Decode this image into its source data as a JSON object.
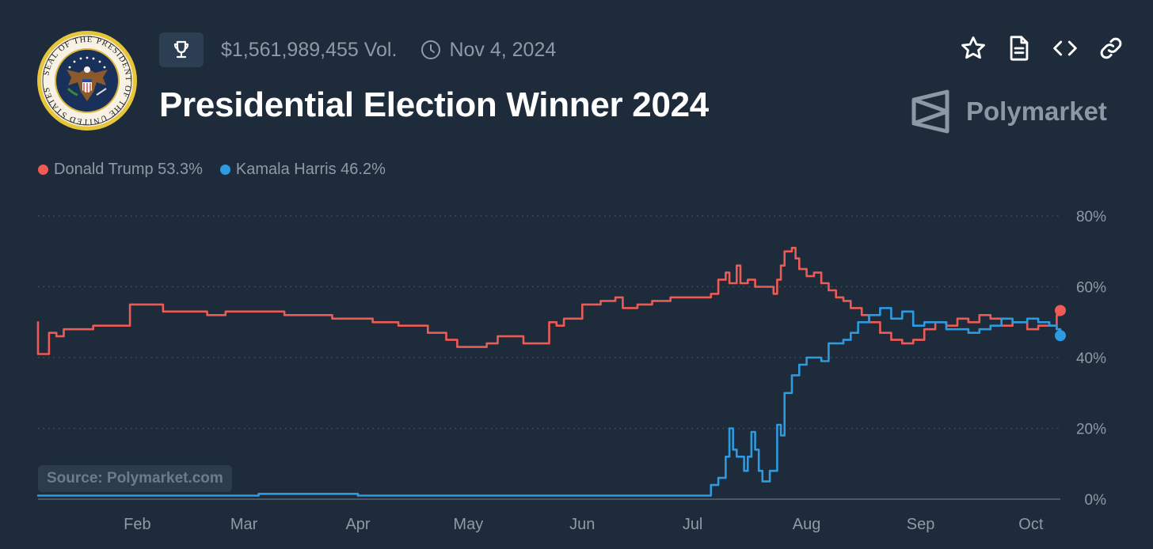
{
  "header": {
    "volume": "$1,561,989,455 Vol.",
    "date": "Nov 4, 2024",
    "title": "Presidential Election Winner 2024",
    "seal_text": "SEAL OF THE PRESIDENT OF THE UNITED STATES",
    "brand": "Polymarket"
  },
  "icons": {
    "trophy": "trophy-icon",
    "clock": "clock-icon",
    "actions": [
      "star-icon",
      "document-icon",
      "code-icon",
      "link-icon"
    ]
  },
  "legend": [
    {
      "label": "Donald Trump 53.3%",
      "color": "#ec5b55"
    },
    {
      "label": "Kamala Harris 46.2%",
      "color": "#2e9ae0"
    }
  ],
  "source": "Source: Polymarket.com",
  "colors": {
    "background": "#1d2b3a",
    "trump": "#ec5b55",
    "harris": "#2e9ae0",
    "muted_text": "#8e9aa7",
    "gridline": "#46566a"
  },
  "chart_data": {
    "type": "line",
    "x_type": "date",
    "xlim": [
      "2024-01-05",
      "2024-10-09"
    ],
    "ylim": [
      0,
      80
    ],
    "y_ticks": [
      0,
      20,
      40,
      60,
      80
    ],
    "y_tick_labels": [
      "0%",
      "20%",
      "40%",
      "60%",
      "80%"
    ],
    "x_ticks": [
      "2024-02-01",
      "2024-03-01",
      "2024-04-01",
      "2024-05-01",
      "2024-06-01",
      "2024-07-01",
      "2024-08-01",
      "2024-09-01",
      "2024-10-01"
    ],
    "x_tick_labels": [
      "Feb",
      "Mar",
      "Apr",
      "May",
      "Jun",
      "Jul",
      "Aug",
      "Sep",
      "Oct"
    ],
    "grid": "horizontal dotted",
    "legend_position": "top-left",
    "series": [
      {
        "name": "Donald Trump",
        "color": "#ec5b55",
        "points": [
          [
            "2024-01-05",
            50
          ],
          [
            "2024-01-05",
            41
          ],
          [
            "2024-01-07",
            41
          ],
          [
            "2024-01-08",
            47
          ],
          [
            "2024-01-10",
            46
          ],
          [
            "2024-01-12",
            48
          ],
          [
            "2024-01-15",
            48
          ],
          [
            "2024-01-20",
            49
          ],
          [
            "2024-01-28",
            49
          ],
          [
            "2024-01-30",
            55
          ],
          [
            "2024-02-06",
            55
          ],
          [
            "2024-02-08",
            53
          ],
          [
            "2024-02-15",
            53
          ],
          [
            "2024-02-20",
            52
          ],
          [
            "2024-02-25",
            53
          ],
          [
            "2024-03-01",
            53
          ],
          [
            "2024-03-05",
            53
          ],
          [
            "2024-03-10",
            53
          ],
          [
            "2024-03-12",
            52
          ],
          [
            "2024-03-22",
            52
          ],
          [
            "2024-03-25",
            51
          ],
          [
            "2024-04-01",
            51
          ],
          [
            "2024-04-05",
            50
          ],
          [
            "2024-04-12",
            49
          ],
          [
            "2024-04-20",
            47
          ],
          [
            "2024-04-25",
            45
          ],
          [
            "2024-04-28",
            43
          ],
          [
            "2024-05-01",
            43
          ],
          [
            "2024-05-06",
            44
          ],
          [
            "2024-05-09",
            46
          ],
          [
            "2024-05-13",
            46
          ],
          [
            "2024-05-16",
            44
          ],
          [
            "2024-05-22",
            44
          ],
          [
            "2024-05-23",
            50
          ],
          [
            "2024-05-25",
            49
          ],
          [
            "2024-05-27",
            51
          ],
          [
            "2024-06-01",
            55
          ],
          [
            "2024-06-06",
            56
          ],
          [
            "2024-06-10",
            57
          ],
          [
            "2024-06-12",
            54
          ],
          [
            "2024-06-16",
            55
          ],
          [
            "2024-06-20",
            56
          ],
          [
            "2024-06-25",
            57
          ],
          [
            "2024-06-30",
            57
          ],
          [
            "2024-07-03",
            57
          ],
          [
            "2024-07-06",
            58
          ],
          [
            "2024-07-08",
            62
          ],
          [
            "2024-07-10",
            64
          ],
          [
            "2024-07-11",
            61
          ],
          [
            "2024-07-13",
            66
          ],
          [
            "2024-07-14",
            61
          ],
          [
            "2024-07-16",
            62
          ],
          [
            "2024-07-18",
            60
          ],
          [
            "2024-07-21",
            60
          ],
          [
            "2024-07-23",
            58
          ],
          [
            "2024-07-24",
            62
          ],
          [
            "2024-07-25",
            66
          ],
          [
            "2024-07-26",
            70
          ],
          [
            "2024-07-28",
            71
          ],
          [
            "2024-07-29",
            68
          ],
          [
            "2024-07-30",
            65
          ],
          [
            "2024-08-01",
            63
          ],
          [
            "2024-08-03",
            64
          ],
          [
            "2024-08-05",
            61
          ],
          [
            "2024-08-07",
            59
          ],
          [
            "2024-08-09",
            57
          ],
          [
            "2024-08-11",
            56
          ],
          [
            "2024-08-13",
            54
          ],
          [
            "2024-08-16",
            52
          ],
          [
            "2024-08-18",
            50
          ],
          [
            "2024-08-21",
            47
          ],
          [
            "2024-08-24",
            45
          ],
          [
            "2024-08-27",
            44
          ],
          [
            "2024-08-30",
            45
          ],
          [
            "2024-09-02",
            48
          ],
          [
            "2024-09-05",
            50
          ],
          [
            "2024-09-08",
            49
          ],
          [
            "2024-09-11",
            51
          ],
          [
            "2024-09-14",
            50
          ],
          [
            "2024-09-17",
            52
          ],
          [
            "2024-09-20",
            51
          ],
          [
            "2024-09-23",
            49
          ],
          [
            "2024-09-26",
            50
          ],
          [
            "2024-09-30",
            48
          ],
          [
            "2024-10-03",
            49
          ],
          [
            "2024-10-06",
            49
          ],
          [
            "2024-10-08",
            52
          ],
          [
            "2024-10-09",
            53.3
          ]
        ]
      },
      {
        "name": "Kamala Harris",
        "color": "#2e9ae0",
        "points": [
          [
            "2024-01-05",
            1
          ],
          [
            "2024-03-01",
            1
          ],
          [
            "2024-03-05",
            1.5
          ],
          [
            "2024-04-01",
            1
          ],
          [
            "2024-06-01",
            1
          ],
          [
            "2024-07-04",
            1
          ],
          [
            "2024-07-06",
            4
          ],
          [
            "2024-07-08",
            6
          ],
          [
            "2024-07-10",
            12
          ],
          [
            "2024-07-11",
            20
          ],
          [
            "2024-07-12",
            14
          ],
          [
            "2024-07-13",
            12
          ],
          [
            "2024-07-15",
            8
          ],
          [
            "2024-07-16",
            12
          ],
          [
            "2024-07-17",
            19
          ],
          [
            "2024-07-18",
            14
          ],
          [
            "2024-07-19",
            8
          ],
          [
            "2024-07-20",
            5
          ],
          [
            "2024-07-22",
            8
          ],
          [
            "2024-07-24",
            21
          ],
          [
            "2024-07-25",
            18
          ],
          [
            "2024-07-26",
            30
          ],
          [
            "2024-07-28",
            35
          ],
          [
            "2024-07-30",
            38
          ],
          [
            "2024-08-01",
            40
          ],
          [
            "2024-08-03",
            40
          ],
          [
            "2024-08-05",
            39
          ],
          [
            "2024-08-07",
            44
          ],
          [
            "2024-08-09",
            44
          ],
          [
            "2024-08-11",
            45
          ],
          [
            "2024-08-13",
            47
          ],
          [
            "2024-08-15",
            50
          ],
          [
            "2024-08-18",
            52
          ],
          [
            "2024-08-21",
            54
          ],
          [
            "2024-08-24",
            51
          ],
          [
            "2024-08-27",
            53
          ],
          [
            "2024-08-30",
            49
          ],
          [
            "2024-09-02",
            50
          ],
          [
            "2024-09-05",
            50
          ],
          [
            "2024-09-08",
            48
          ],
          [
            "2024-09-11",
            48
          ],
          [
            "2024-09-14",
            47
          ],
          [
            "2024-09-17",
            48
          ],
          [
            "2024-09-20",
            49
          ],
          [
            "2024-09-23",
            51
          ],
          [
            "2024-09-26",
            50
          ],
          [
            "2024-09-30",
            51
          ],
          [
            "2024-10-03",
            50
          ],
          [
            "2024-10-06",
            49
          ],
          [
            "2024-10-08",
            48
          ],
          [
            "2024-10-09",
            46.2
          ]
        ]
      }
    ]
  }
}
